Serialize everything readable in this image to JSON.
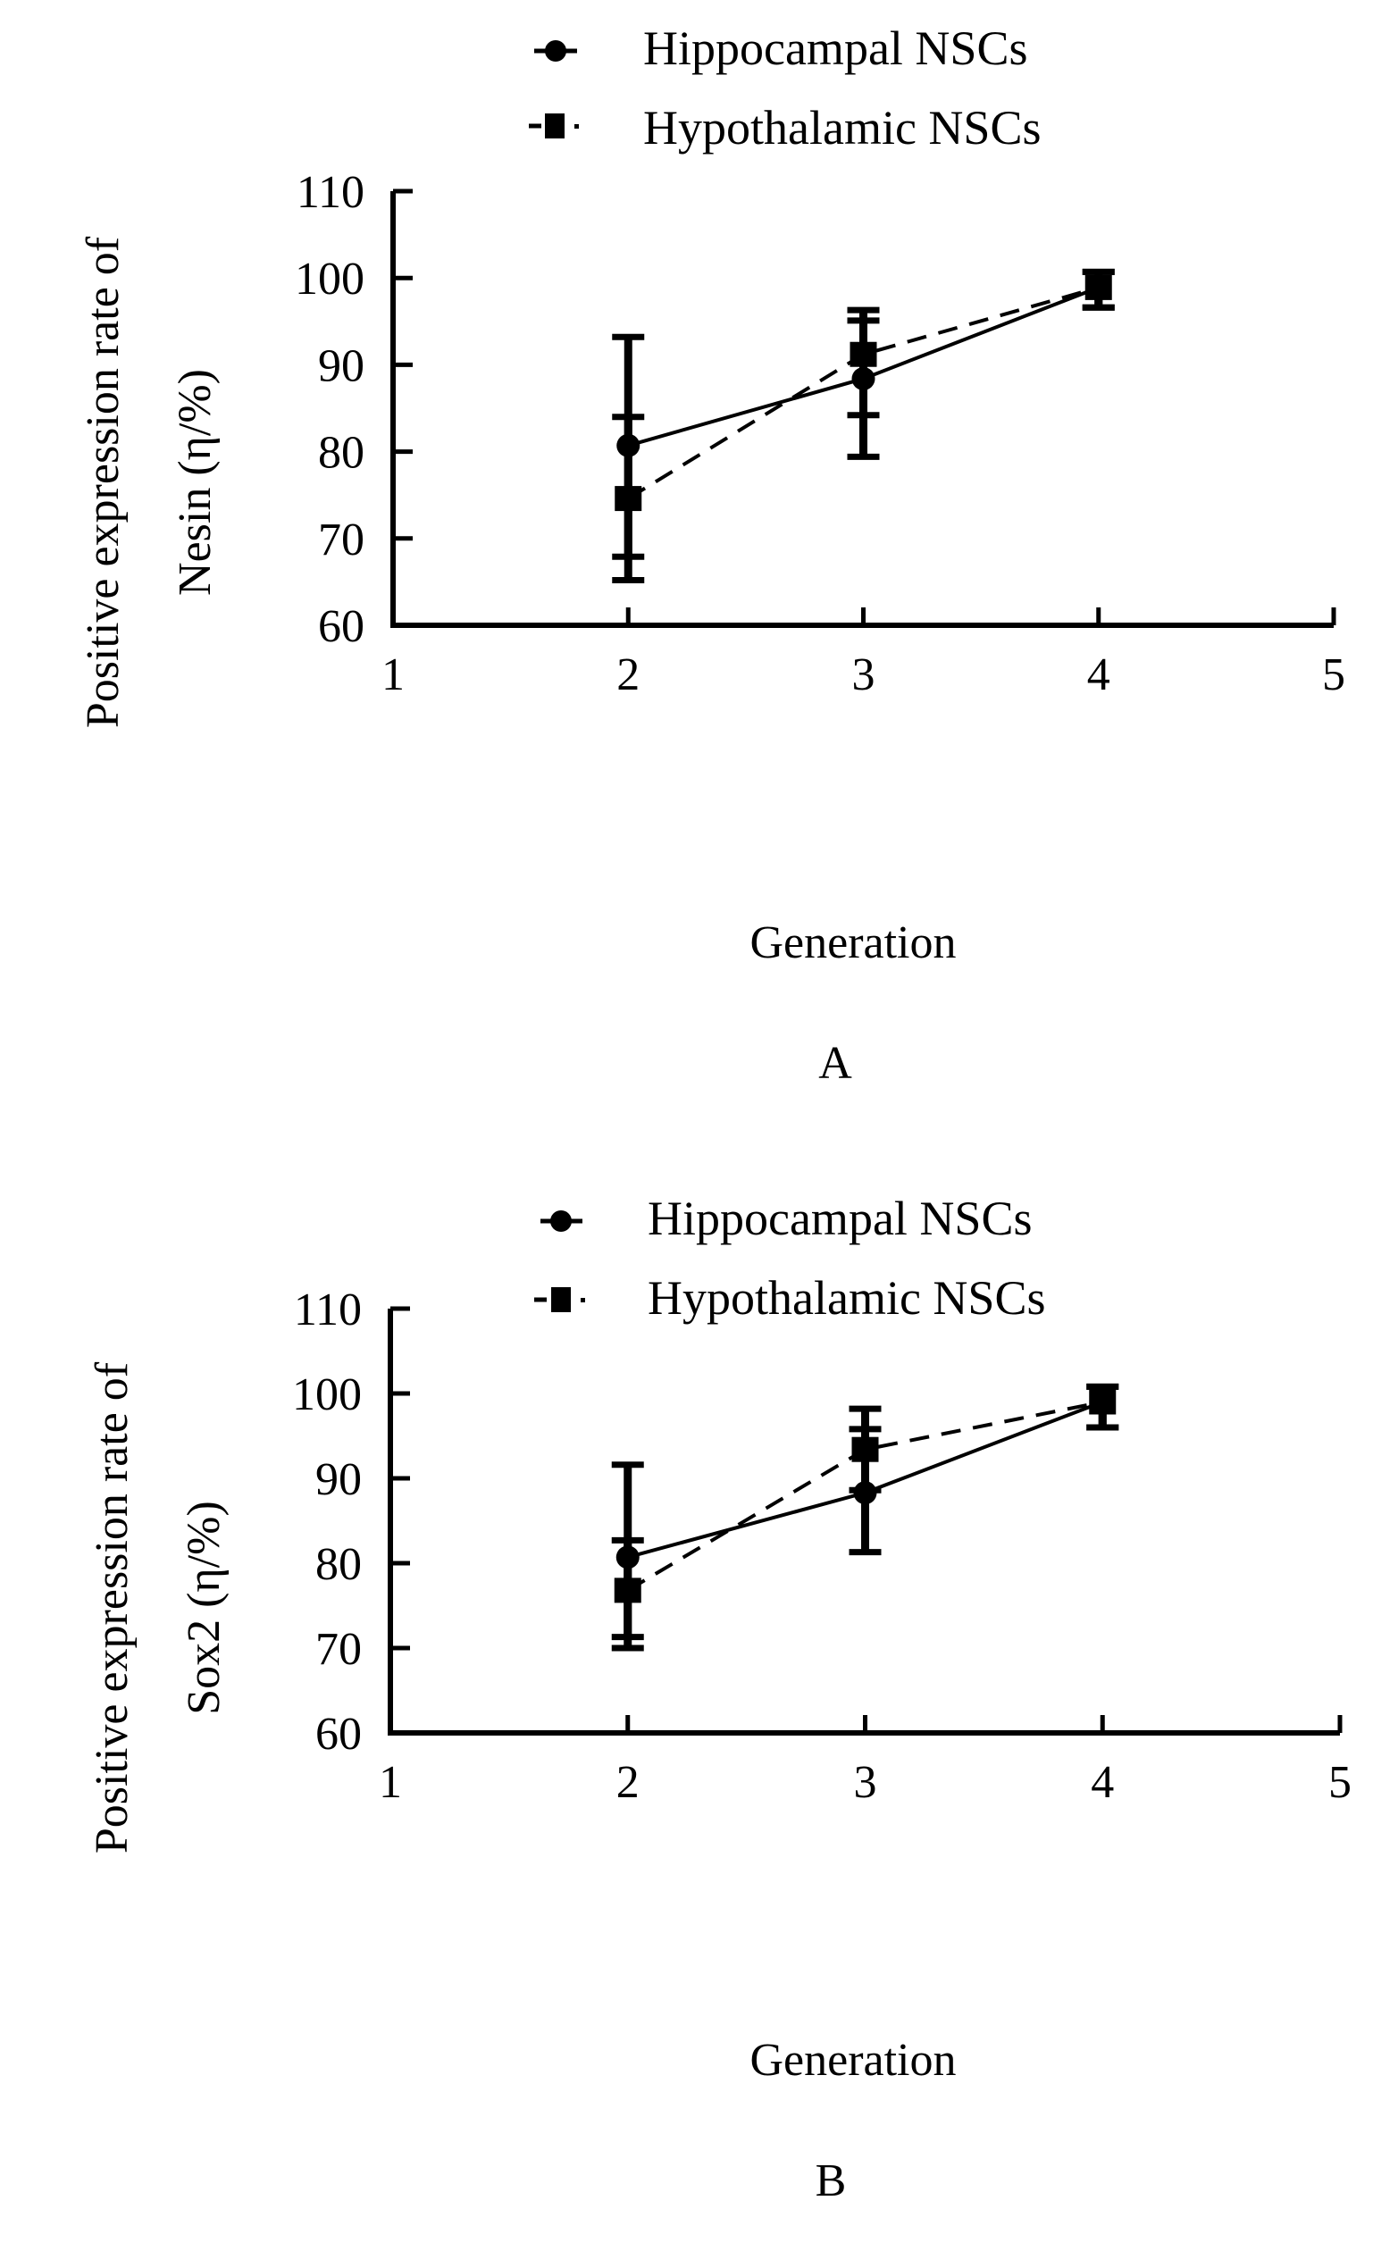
{
  "chart_data": [
    {
      "type": "line",
      "panel": "A",
      "title": "",
      "xlabel": "Generation",
      "ylabel_line1": "Positive expression rate of",
      "ylabel_line2": "Nesin (η/%)",
      "xlim": [
        1,
        5
      ],
      "ylim": [
        60,
        110
      ],
      "xticks": [
        "1",
        "2",
        "3",
        "4",
        "5"
      ],
      "yticks": [
        "60",
        "70",
        "80",
        "90",
        "100",
        "110"
      ],
      "grid": false,
      "legend_position": "top-center",
      "series": [
        {
          "name": "Hippocampal NSCs",
          "marker": "circle",
          "line_style": "solid",
          "x": [
            2,
            3,
            4
          ],
          "values": [
            80.7,
            88.4,
            98.9
          ],
          "err_low": [
            67.9,
            79.4,
            96.6
          ],
          "err_high": [
            93.2,
            95.1,
            100.7
          ]
        },
        {
          "name": "Hypothalamic NSCs",
          "marker": "square",
          "line_style": "dashed",
          "x": [
            2,
            3,
            4
          ],
          "values": [
            74.6,
            91.2,
            98.9
          ],
          "err_low": [
            65.2,
            84.2,
            96.6
          ],
          "err_high": [
            84.0,
            96.3,
            100.7
          ]
        }
      ]
    },
    {
      "type": "line",
      "panel": "B",
      "title": "",
      "xlabel": "Generation",
      "ylabel_line1": "Positive expression rate of",
      "ylabel_line2": "Sox2 (η/%)",
      "xlim": [
        1,
        5
      ],
      "ylim": [
        60,
        110
      ],
      "xticks": [
        "1",
        "2",
        "3",
        "4",
        "5"
      ],
      "yticks": [
        "60",
        "70",
        "80",
        "90",
        "100",
        "110"
      ],
      "grid": false,
      "legend_position": "top-center",
      "series": [
        {
          "name": "Hippocampal NSCs",
          "marker": "circle",
          "line_style": "solid",
          "x": [
            2,
            3,
            4
          ],
          "values": [
            80.7,
            88.3,
            99.0
          ],
          "err_low": [
            70.0,
            81.3,
            96.0
          ],
          "err_high": [
            91.6,
            95.8,
            100.8
          ]
        },
        {
          "name": "Hypothalamic NSCs",
          "marker": "square",
          "line_style": "dashed",
          "x": [
            2,
            3,
            4
          ],
          "values": [
            76.8,
            93.4,
            99.0
          ],
          "err_low": [
            71.3,
            88.6,
            96.0
          ],
          "err_high": [
            82.7,
            98.2,
            100.8
          ]
        }
      ]
    }
  ],
  "colors": {
    "ink": "#000000",
    "background": "#ffffff"
  }
}
